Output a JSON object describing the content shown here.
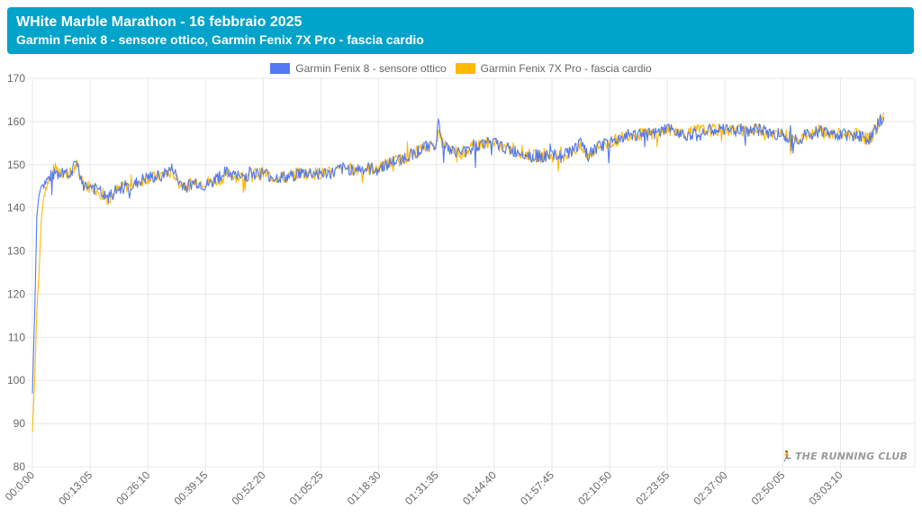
{
  "header": {
    "title": "WHite Marble Marathon - 16 febbraio 2025",
    "subtitle": "Garmin Fenix 8 - sensore ottico, Garmin Fenix 7X Pro - fascia cardio"
  },
  "watermark": {
    "text": "THE RUNNING CLUB"
  },
  "colors": {
    "header_bg": "#00a3c9",
    "series_1": "#5279f2",
    "series_2": "#ffb900",
    "grid": "#e8e8e8"
  },
  "chart_data": {
    "type": "line",
    "title": "WHite Marble Marathon - 16 febbraio 2025",
    "subtitle": "Garmin Fenix 8 - sensore ottico, Garmin Fenix 7X Pro - fascia cardio",
    "ylim": [
      80,
      170
    ],
    "yticks": [
      80,
      90,
      100,
      110,
      120,
      130,
      140,
      150,
      160,
      170
    ],
    "xlim_seconds": [
      0,
      12000
    ],
    "xtick_labels": [
      "00:0:00",
      "00:13:05",
      "00:26:10",
      "00:39:15",
      "00:52:20",
      "01:05:25",
      "01:18:30",
      "01:31:35",
      "01:44:40",
      "01:57:45",
      "02:10:50",
      "02:23:55",
      "02:37:00",
      "02:50:05",
      "03:03:10"
    ],
    "legend_position": "top",
    "grid": true,
    "series": [
      {
        "name": "Garmin Fenix 8 - sensore ottico",
        "color": "#5279f2",
        "points": [
          [
            "00:00:00",
            97
          ],
          [
            "00:00:30",
            115
          ],
          [
            "00:01:00",
            138
          ],
          [
            "00:01:30",
            143
          ],
          [
            "00:02:00",
            145
          ],
          [
            "00:03:00",
            146
          ],
          [
            "00:04:00",
            147
          ],
          [
            "00:05:00",
            148
          ],
          [
            "00:06:00",
            147
          ],
          [
            "00:07:00",
            148
          ],
          [
            "00:08:00",
            147
          ],
          [
            "00:09:00",
            148
          ],
          [
            "00:10:00",
            151
          ],
          [
            "00:11:00",
            147
          ],
          [
            "00:12:00",
            145
          ],
          [
            "00:13:05",
            145
          ],
          [
            "00:15:00",
            144
          ],
          [
            "00:17:00",
            142
          ],
          [
            "00:19:00",
            144
          ],
          [
            "00:21:00",
            145
          ],
          [
            "00:23:00",
            145
          ],
          [
            "00:24:00",
            146
          ],
          [
            "00:26:10",
            147
          ],
          [
            "00:28:00",
            147
          ],
          [
            "00:30:00",
            148
          ],
          [
            "00:32:00",
            149
          ],
          [
            "00:33:00",
            146
          ],
          [
            "00:35:00",
            145
          ],
          [
            "00:37:00",
            146
          ],
          [
            "00:39:15",
            145
          ],
          [
            "00:41:00",
            146
          ],
          [
            "00:43:00",
            148
          ],
          [
            "00:45:00",
            148
          ],
          [
            "00:47:00",
            147
          ],
          [
            "00:50:00",
            148
          ],
          [
            "00:52:20",
            148
          ],
          [
            "00:55:00",
            147
          ],
          [
            "00:58:00",
            147
          ],
          [
            "01:00:00",
            148
          ],
          [
            "01:03:00",
            148
          ],
          [
            "01:05:25",
            148
          ],
          [
            "01:08:00",
            148
          ],
          [
            "01:10:00",
            149
          ],
          [
            "01:12:00",
            149
          ],
          [
            "01:15:00",
            149
          ],
          [
            "01:18:30",
            149
          ],
          [
            "01:20:00",
            150
          ],
          [
            "01:23:00",
            151
          ],
          [
            "01:25:00",
            152
          ],
          [
            "01:27:00",
            153
          ],
          [
            "01:29:00",
            154
          ],
          [
            "01:31:35",
            155
          ],
          [
            "01:32:00",
            160
          ],
          [
            "01:33:00",
            155
          ],
          [
            "01:35:00",
            153
          ],
          [
            "01:38:00",
            153
          ],
          [
            "01:40:00",
            154
          ],
          [
            "01:42:00",
            155
          ],
          [
            "01:44:40",
            155
          ],
          [
            "01:47:00",
            154
          ],
          [
            "01:49:00",
            153
          ],
          [
            "01:51:00",
            153
          ],
          [
            "01:53:00",
            152
          ],
          [
            "01:55:00",
            152
          ],
          [
            "01:57:45",
            152
          ],
          [
            "02:00:00",
            152
          ],
          [
            "02:02:00",
            153
          ],
          [
            "02:04:00",
            155
          ],
          [
            "02:06:00",
            152
          ],
          [
            "02:08:00",
            154
          ],
          [
            "02:10:50",
            155
          ],
          [
            "02:13:00",
            156
          ],
          [
            "02:15:00",
            157
          ],
          [
            "02:18:00",
            157
          ],
          [
            "02:21:00",
            157
          ],
          [
            "02:23:55",
            158
          ],
          [
            "02:26:00",
            158
          ],
          [
            "02:28:00",
            157
          ],
          [
            "02:31:00",
            157
          ],
          [
            "02:34:00",
            158
          ],
          [
            "02:37:00",
            158
          ],
          [
            "02:40:00",
            158
          ],
          [
            "02:43:00",
            158
          ],
          [
            "02:46:00",
            158
          ],
          [
            "02:48:00",
            157
          ],
          [
            "02:50:05",
            157
          ],
          [
            "02:53:00",
            156
          ],
          [
            "02:56:00",
            157
          ],
          [
            "02:59:00",
            158
          ],
          [
            "03:01:00",
            157
          ],
          [
            "03:03:10",
            157
          ],
          [
            "03:05:00",
            157
          ],
          [
            "03:07:00",
            157
          ],
          [
            "03:09:00",
            156
          ],
          [
            "03:10:00",
            156
          ],
          [
            "03:11:00",
            158
          ],
          [
            "03:12:00",
            160
          ],
          [
            "03:13:00",
            161
          ]
        ]
      },
      {
        "name": "Garmin Fenix 7X Pro - fascia cardio",
        "color": "#ffb900",
        "points": [
          [
            "00:00:00",
            88
          ],
          [
            "00:00:30",
            100
          ],
          [
            "00:01:00",
            116
          ],
          [
            "00:01:30",
            125
          ],
          [
            "00:02:00",
            137
          ],
          [
            "00:02:30",
            142
          ],
          [
            "00:03:00",
            145
          ],
          [
            "00:04:00",
            147
          ],
          [
            "00:05:00",
            149
          ],
          [
            "00:06:00",
            149
          ],
          [
            "00:07:00",
            148
          ],
          [
            "00:08:00",
            148
          ],
          [
            "00:09:00",
            148
          ],
          [
            "00:10:00",
            150
          ],
          [
            "00:11:00",
            147
          ],
          [
            "00:12:00",
            145
          ],
          [
            "00:13:05",
            145
          ],
          [
            "00:15:00",
            144
          ],
          [
            "00:17:00",
            142
          ],
          [
            "00:19:00",
            144
          ],
          [
            "00:21:00",
            145
          ],
          [
            "00:23:00",
            145
          ],
          [
            "00:24:00",
            146
          ],
          [
            "00:26:10",
            147
          ],
          [
            "00:28:00",
            147
          ],
          [
            "00:30:00",
            148
          ],
          [
            "00:32:00",
            148
          ],
          [
            "00:33:00",
            146
          ],
          [
            "00:35:00",
            145
          ],
          [
            "00:37:00",
            146
          ],
          [
            "00:39:15",
            146
          ],
          [
            "00:41:00",
            146
          ],
          [
            "00:43:00",
            147
          ],
          [
            "00:45:00",
            148
          ],
          [
            "00:47:00",
            147
          ],
          [
            "00:50:00",
            148
          ],
          [
            "00:52:20",
            148
          ],
          [
            "00:55:00",
            147
          ],
          [
            "00:58:00",
            147
          ],
          [
            "01:00:00",
            148
          ],
          [
            "01:03:00",
            148
          ],
          [
            "01:05:25",
            148
          ],
          [
            "01:08:00",
            148
          ],
          [
            "01:10:00",
            149
          ],
          [
            "01:12:00",
            149
          ],
          [
            "01:15:00",
            149
          ],
          [
            "01:18:30",
            149
          ],
          [
            "01:20:00",
            150
          ],
          [
            "01:23:00",
            151
          ],
          [
            "01:25:00",
            152
          ],
          [
            "01:27:00",
            153
          ],
          [
            "01:29:00",
            154
          ],
          [
            "01:31:35",
            155
          ],
          [
            "01:32:00",
            157
          ],
          [
            "01:33:00",
            155
          ],
          [
            "01:35:00",
            153
          ],
          [
            "01:38:00",
            153
          ],
          [
            "01:40:00",
            154
          ],
          [
            "01:42:00",
            155
          ],
          [
            "01:44:40",
            155
          ],
          [
            "01:47:00",
            154
          ],
          [
            "01:49:00",
            153
          ],
          [
            "01:51:00",
            153
          ],
          [
            "01:53:00",
            152
          ],
          [
            "01:55:00",
            152
          ],
          [
            "01:57:45",
            152
          ],
          [
            "02:00:00",
            152
          ],
          [
            "02:02:00",
            153
          ],
          [
            "02:04:00",
            154
          ],
          [
            "02:06:00",
            152
          ],
          [
            "02:08:00",
            154
          ],
          [
            "02:10:50",
            155
          ],
          [
            "02:13:00",
            156
          ],
          [
            "02:15:00",
            157
          ],
          [
            "02:18:00",
            157
          ],
          [
            "02:21:00",
            157
          ],
          [
            "02:23:55",
            158
          ],
          [
            "02:26:00",
            158
          ],
          [
            "02:28:00",
            157
          ],
          [
            "02:31:00",
            158
          ],
          [
            "02:34:00",
            158
          ],
          [
            "02:37:00",
            158
          ],
          [
            "02:40:00",
            158
          ],
          [
            "02:43:00",
            158
          ],
          [
            "02:46:00",
            158
          ],
          [
            "02:48:00",
            157
          ],
          [
            "02:50:05",
            157
          ],
          [
            "02:53:00",
            156
          ],
          [
            "02:56:00",
            157
          ],
          [
            "02:59:00",
            158
          ],
          [
            "03:01:00",
            157
          ],
          [
            "03:03:10",
            157
          ],
          [
            "03:05:00",
            157
          ],
          [
            "03:07:00",
            157
          ],
          [
            "03:09:00",
            156
          ],
          [
            "03:10:00",
            156
          ],
          [
            "03:11:00",
            158
          ],
          [
            "03:12:00",
            160
          ],
          [
            "03:13:00",
            162
          ]
        ]
      }
    ]
  }
}
